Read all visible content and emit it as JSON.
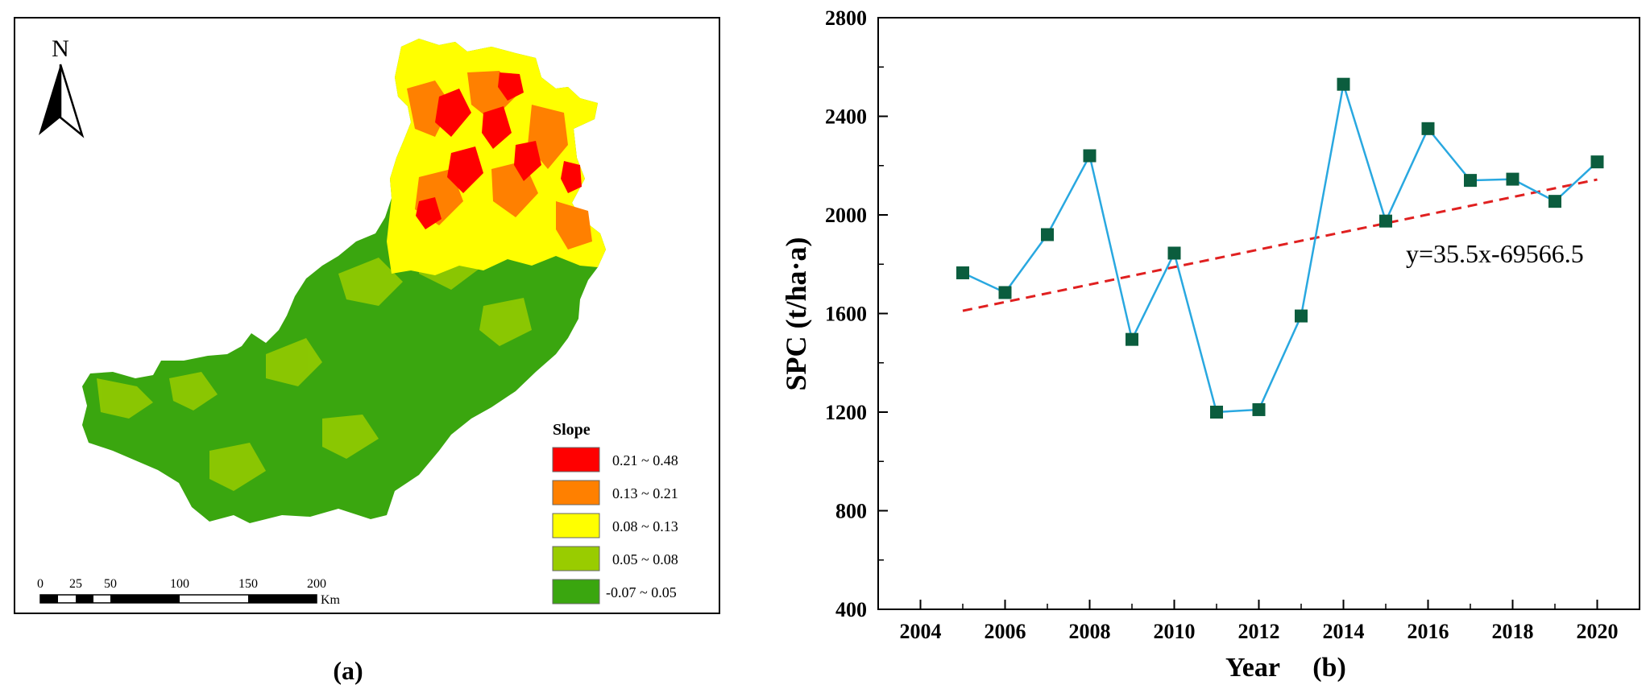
{
  "map_panel": {
    "caption": "(a)",
    "north_label": "N",
    "legend": {
      "title": "Slope",
      "classes": [
        {
          "label": "0.21 ~ 0.48",
          "color": "#ff0000"
        },
        {
          "label": "0.13 ~ 0.21",
          "color": "#ff8000"
        },
        {
          "label": "0.08 ~ 0.13",
          "color": "#ffff00"
        },
        {
          "label": "0.05 ~ 0.08",
          "color": "#99cc00"
        },
        {
          "label": "-0.07 ~ 0.05",
          "color": "#3aa60f"
        }
      ]
    },
    "scalebar": {
      "ticks": [
        "0",
        "25",
        "50",
        "100",
        "150",
        "200"
      ],
      "unit": "Km"
    }
  },
  "chart_panel": {
    "caption": "(b)"
  },
  "chart_data": {
    "type": "line",
    "title": "",
    "xlabel": "Year",
    "ylabel": "SPC (t/ha·a)",
    "xlim": [
      2003,
      2021
    ],
    "ylim": [
      400,
      2800
    ],
    "xticks": [
      2004,
      2006,
      2008,
      2010,
      2012,
      2014,
      2016,
      2018,
      2020
    ],
    "yticks": [
      400,
      800,
      1200,
      1600,
      2000,
      2400,
      2800
    ],
    "x": [
      2005,
      2006,
      2007,
      2008,
      2009,
      2010,
      2011,
      2012,
      2013,
      2014,
      2015,
      2016,
      2017,
      2018,
      2019,
      2020
    ],
    "series": [
      {
        "values": [
          1765,
          1685,
          1920,
          2240,
          1495,
          1845,
          1200,
          1210,
          1590,
          2530,
          1975,
          2350,
          2140,
          2145,
          2055,
          2215
        ],
        "line_color": "#29a8e0",
        "marker_color": "#0b5d3e"
      }
    ],
    "trend": {
      "equation": "y=35.5x-69566.5",
      "slope": 35.5,
      "intercept": -69566.5,
      "color": "#e02020"
    },
    "grid": false,
    "legend": "none"
  }
}
